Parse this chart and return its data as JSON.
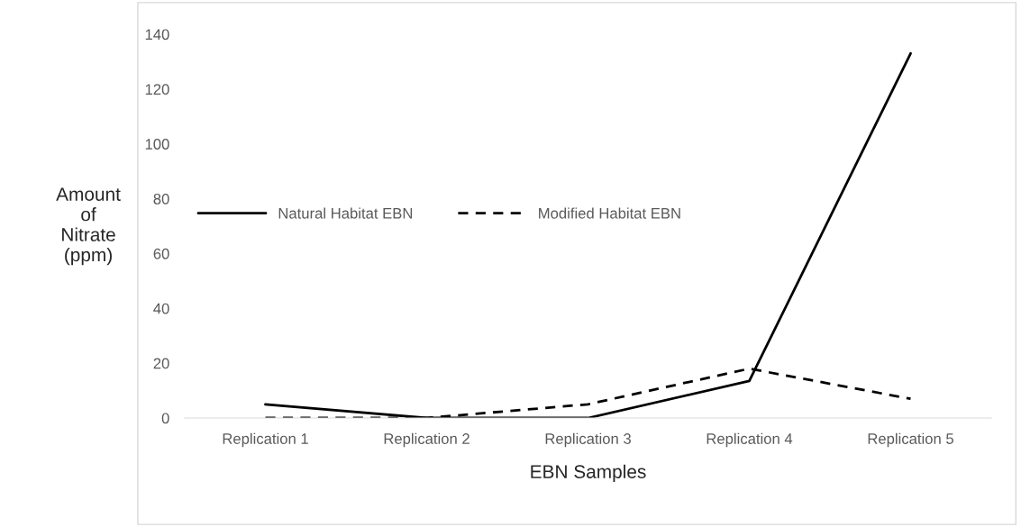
{
  "chart_data": {
    "type": "line",
    "xlabel": "EBN Samples",
    "ylabel": "Amount\nof\nNitrate\n(ppm)",
    "categories": [
      "Replication 1",
      "Replication 2",
      "Replication 3",
      "Replication 4",
      "Replication 5"
    ],
    "series": [
      {
        "name": "Natural Habitat EBN",
        "color": "#000000",
        "line_style": "solid",
        "values": [
          5,
          0,
          0,
          13.5,
          133
        ]
      },
      {
        "name": "Modified Habitat EBN",
        "color": "#000000",
        "line_style": "dashed",
        "values": [
          0,
          0,
          5,
          18,
          7
        ]
      }
    ],
    "ylim": [
      0,
      140
    ],
    "yticks": [
      0,
      20,
      40,
      60,
      80,
      100,
      120,
      140
    ],
    "grid": false,
    "legend": "left",
    "marker": "none"
  }
}
